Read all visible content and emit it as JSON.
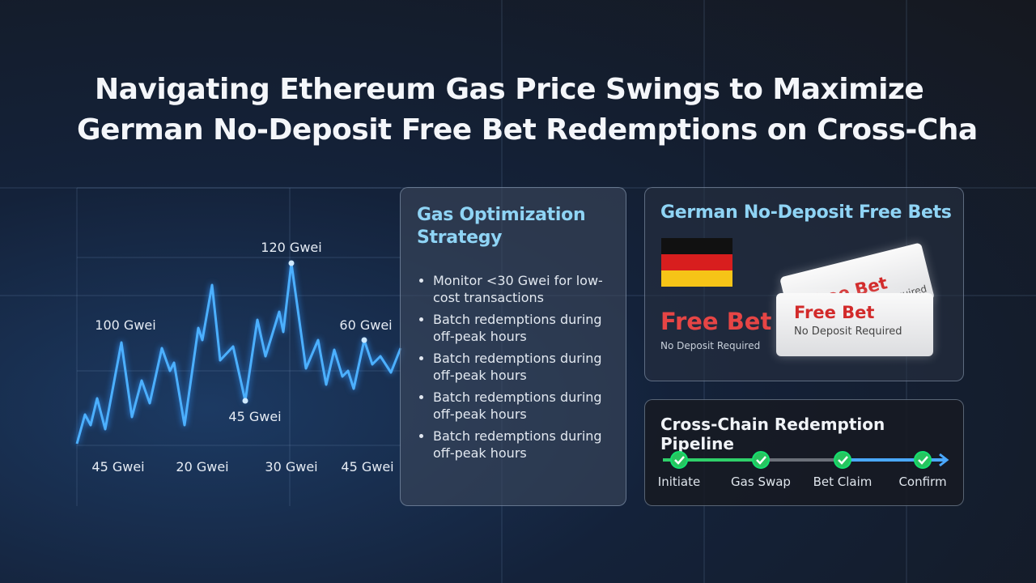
{
  "title": [
    "Navigating Ethereum Gas Price Swings to Maximize",
    "German No-Deposit Free Bet Redemptions on Cross-Cha"
  ],
  "gas_chart": {
    "annotations": [
      "120 Gwei",
      "100 Gwei",
      "60 Gwei",
      "45 Gwei"
    ],
    "x_labels": [
      "45 Gwei",
      "20 Gwei",
      "30 Gwei",
      "45 Gwei"
    ]
  },
  "strategy": {
    "title": "Gas Optimization Strategy",
    "items": [
      "Monitor <30 Gwei for low-cost transactions",
      "Batch redemptions during off-peak hours",
      "Batch redemptions during off-peak hours",
      "Batch redemptions during off-peak hours",
      "Batch redemptions during off-peak hours"
    ]
  },
  "free_bets": {
    "title": "German No-Deposit Free Bets",
    "label": "Free Bet",
    "sublabel": "No Deposit Required",
    "tickets": [
      {
        "label": "Free Bet",
        "sublabel": "No Deposit Required"
      },
      {
        "label": "Free Bet",
        "sublabel": "No Deposit Required"
      }
    ]
  },
  "pipeline": {
    "title": "Cross-Chain Redemption Pipeline",
    "steps": [
      "Initiate",
      "Gas Swap",
      "Bet Claim",
      "Confirm"
    ]
  }
}
